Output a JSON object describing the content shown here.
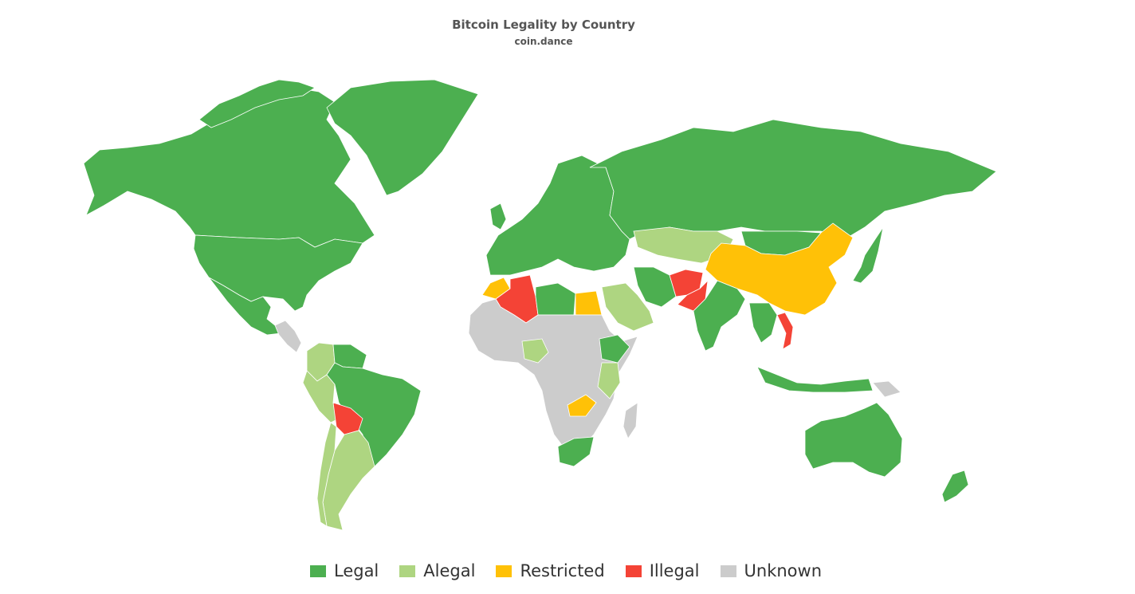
{
  "header": {
    "title": "Bitcoin Legality by Country",
    "subtitle": "coin.dance"
  },
  "map": {
    "type": "choropleth-world",
    "ocean_color": "#ffffff",
    "categories": [
      {
        "key": "legal",
        "label": "Legal",
        "color": "#4caf50"
      },
      {
        "key": "alegal",
        "label": "Alegal",
        "color": "#aed581"
      },
      {
        "key": "restricted",
        "label": "Restricted",
        "color": "#ffc107"
      },
      {
        "key": "illegal",
        "label": "Illegal",
        "color": "#f44336"
      },
      {
        "key": "unknown",
        "label": "Unknown",
        "color": "#cccccc"
      }
    ],
    "regions": [
      {
        "name": "Canada",
        "status": "legal"
      },
      {
        "name": "Greenland",
        "status": "legal"
      },
      {
        "name": "United States",
        "status": "legal"
      },
      {
        "name": "Mexico",
        "status": "legal"
      },
      {
        "name": "Central America",
        "status": "unknown"
      },
      {
        "name": "Colombia",
        "status": "alegal"
      },
      {
        "name": "Venezuela",
        "status": "legal"
      },
      {
        "name": "Peru",
        "status": "alegal"
      },
      {
        "name": "Brazil",
        "status": "legal"
      },
      {
        "name": "Bolivia",
        "status": "illegal"
      },
      {
        "name": "Argentina",
        "status": "alegal"
      },
      {
        "name": "Chile",
        "status": "alegal"
      },
      {
        "name": "Europe",
        "status": "legal"
      },
      {
        "name": "Russia",
        "status": "legal"
      },
      {
        "name": "Kazakhstan",
        "status": "alegal"
      },
      {
        "name": "China",
        "status": "restricted"
      },
      {
        "name": "Mongolia",
        "status": "legal"
      },
      {
        "name": "Afghanistan",
        "status": "illegal"
      },
      {
        "name": "Pakistan",
        "status": "illegal"
      },
      {
        "name": "India",
        "status": "legal"
      },
      {
        "name": "Saudi Arabia",
        "status": "alegal"
      },
      {
        "name": "Iran",
        "status": "legal"
      },
      {
        "name": "Morocco",
        "status": "restricted"
      },
      {
        "name": "Algeria",
        "status": "illegal"
      },
      {
        "name": "Libya",
        "status": "legal"
      },
      {
        "name": "Egypt",
        "status": "restricted"
      },
      {
        "name": "Nigeria",
        "status": "alegal"
      },
      {
        "name": "Ethiopia",
        "status": "legal"
      },
      {
        "name": "Kenya",
        "status": "alegal"
      },
      {
        "name": "Zambia",
        "status": "restricted"
      },
      {
        "name": "South Africa",
        "status": "legal"
      },
      {
        "name": "Vietnam",
        "status": "illegal"
      },
      {
        "name": "Japan",
        "status": "legal"
      },
      {
        "name": "Indonesia",
        "status": "legal"
      },
      {
        "name": "Australia",
        "status": "legal"
      },
      {
        "name": "New Zealand",
        "status": "legal"
      }
    ]
  },
  "legend": {
    "items": [
      {
        "label": "Legal",
        "color": "#4caf50"
      },
      {
        "label": "Alegal",
        "color": "#aed581"
      },
      {
        "label": "Restricted",
        "color": "#ffc107"
      },
      {
        "label": "Illegal",
        "color": "#f44336"
      },
      {
        "label": "Unknown",
        "color": "#cccccc"
      }
    ]
  }
}
